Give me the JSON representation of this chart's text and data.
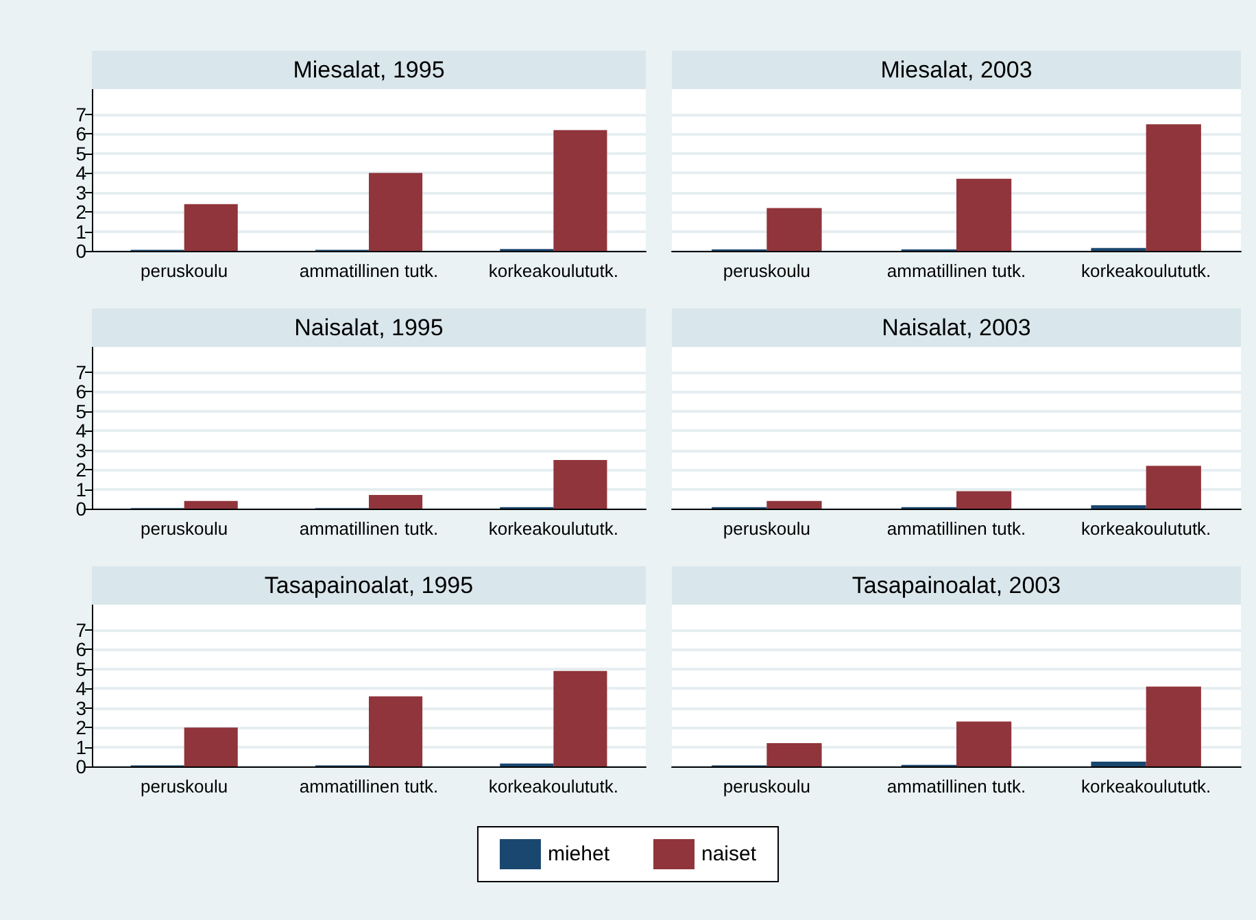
{
  "chart_data": [
    {
      "type": "bar",
      "title": "Miesalat, 1995",
      "categories": [
        "peruskoulu",
        "ammatillinen tutk.",
        "korkeakoulututk."
      ],
      "series": [
        {
          "color": "#1a476f",
          "values": [
            0.05,
            0.05,
            0.1
          ]
        },
        {
          "color": "#90353b",
          "values": [
            2.4,
            4.0,
            6.2
          ]
        }
      ],
      "ylim": [
        0,
        8.3
      ],
      "yticks": [
        0,
        1,
        2,
        3,
        4,
        5,
        6,
        7
      ],
      "grid": "y",
      "legend": false
    },
    {
      "type": "bar",
      "title": "Miesalat, 2003",
      "categories": [
        "peruskoulu",
        "ammatillinen tutk.",
        "korkeakoulututk."
      ],
      "series": [
        {
          "color": "#1a476f",
          "values": [
            0.08,
            0.08,
            0.15
          ]
        },
        {
          "color": "#90353b",
          "values": [
            2.2,
            3.7,
            6.5
          ]
        }
      ],
      "ylim": [
        0,
        8.3
      ],
      "yticks": [
        0,
        1,
        2,
        3,
        4,
        5,
        6,
        7
      ],
      "grid": "y",
      "legend": false,
      "tick_labels": "x"
    },
    {
      "type": "bar",
      "title": "Naisalat, 1995",
      "categories": [
        "peruskoulu",
        "ammatillinen tutk.",
        "korkeakoulututk."
      ],
      "series": [
        {
          "color": "#1a476f",
          "values": [
            0.03,
            0.03,
            0.08
          ]
        },
        {
          "color": "#90353b",
          "values": [
            0.4,
            0.7,
            2.5
          ]
        }
      ],
      "ylim": [
        0,
        8.3
      ],
      "yticks": [
        0,
        1,
        2,
        3,
        4,
        5,
        6,
        7
      ],
      "grid": "y",
      "legend": false
    },
    {
      "type": "bar",
      "title": "Naisalat, 2003",
      "categories": [
        "peruskoulu",
        "ammatillinen tutk.",
        "korkeakoulututk."
      ],
      "series": [
        {
          "color": "#1a476f",
          "values": [
            0.08,
            0.08,
            0.18
          ]
        },
        {
          "color": "#90353b",
          "values": [
            0.4,
            0.9,
            2.2
          ]
        }
      ],
      "ylim": [
        0,
        8.3
      ],
      "yticks": [
        0,
        1,
        2,
        3,
        4,
        5,
        6,
        7
      ],
      "grid": "y",
      "legend": false,
      "tick_labels": "x"
    },
    {
      "type": "bar",
      "title": "Tasapainoalat, 1995",
      "categories": [
        "peruskoulu",
        "ammatillinen tutk.",
        "korkeakoulututk."
      ],
      "series": [
        {
          "name": "miehet",
          "color": "#1a476f",
          "values": [
            0.05,
            0.05,
            0.15
          ]
        },
        {
          "name": "naiset",
          "color": "#90353b",
          "values": [
            2.0,
            3.6,
            4.9
          ]
        }
      ],
      "ylim": [
        0,
        8.3
      ],
      "yticks": [
        0,
        1,
        2,
        3,
        4,
        5,
        6,
        7
      ],
      "grid": "y",
      "legend": "bottom"
    },
    {
      "type": "bar",
      "title": "Tasapainoalat, 2003",
      "categories": [
        "peruskoulu",
        "ammatillinen tutk.",
        "korkeakoulututk."
      ],
      "series": [
        {
          "color": "#1a476f",
          "values": [
            0.05,
            0.08,
            0.25
          ]
        },
        {
          "color": "#90353b",
          "values": [
            1.2,
            2.3,
            4.1
          ]
        }
      ],
      "ylim": [
        0,
        8.3
      ],
      "yticks": [
        0,
        1,
        2,
        3,
        4,
        5,
        6,
        7
      ],
      "grid": "y",
      "legend": false,
      "tick_labels": "x"
    }
  ]
}
